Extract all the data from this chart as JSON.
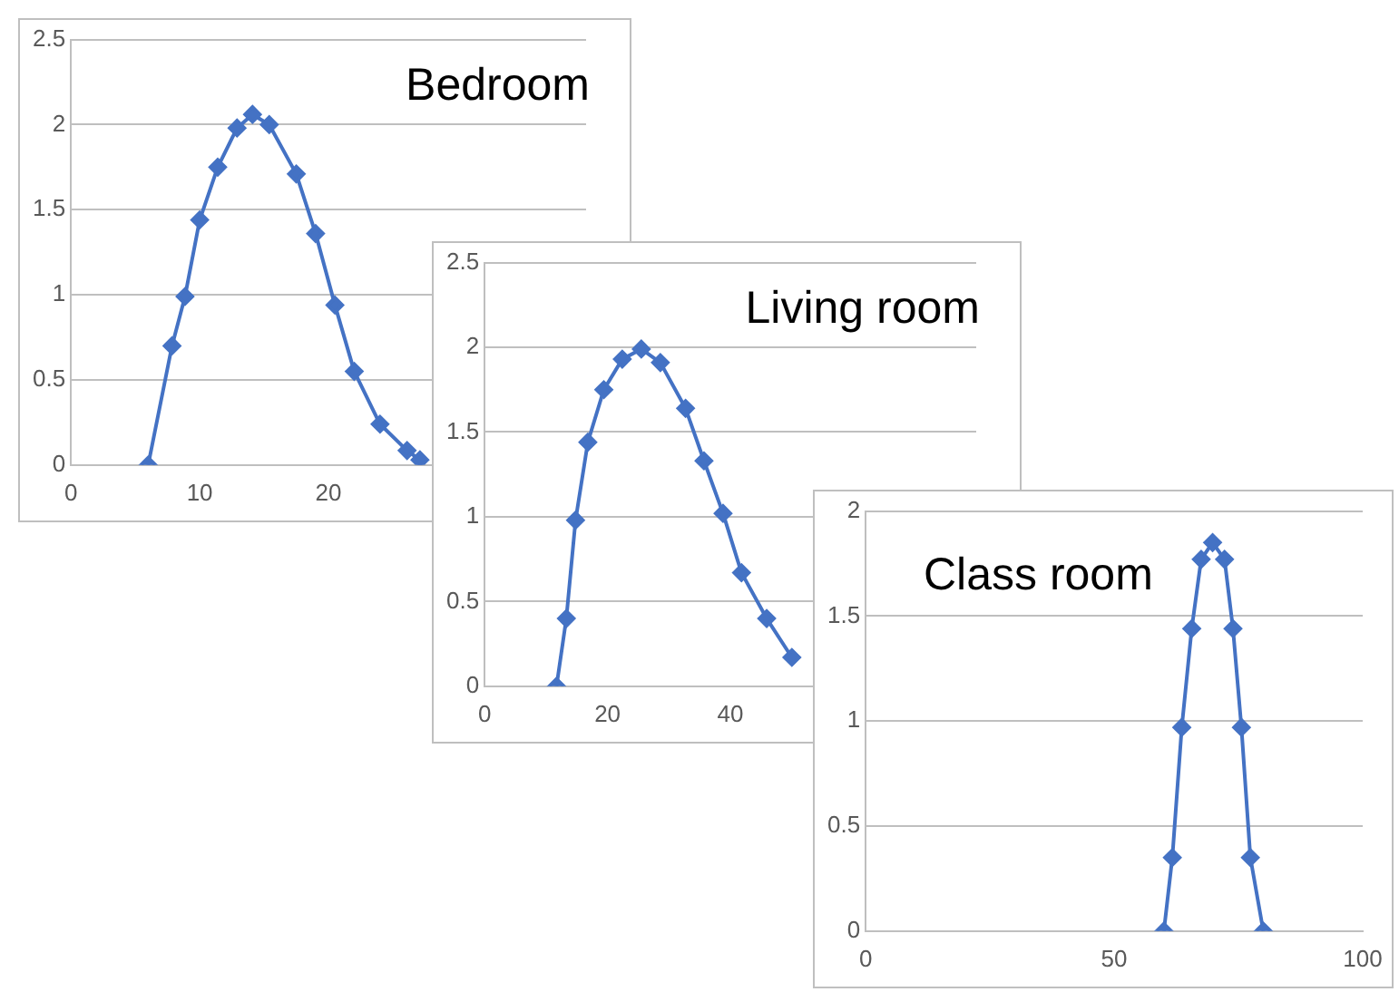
{
  "chart_data": [
    {
      "type": "line",
      "title": "Bedroom",
      "color": "#4472c4",
      "marker": "diamond",
      "grid": "y",
      "x": [
        6,
        7.85,
        8.86,
        10,
        11.4,
        12.9,
        14.1,
        15.4,
        17.5,
        19,
        20.5,
        22,
        24,
        26.1,
        27.1
      ],
      "values": [
        0,
        0.7,
        0.99,
        1.44,
        1.75,
        1.98,
        2.06,
        2.0,
        1.71,
        1.36,
        0.94,
        0.55,
        0.24,
        0.085,
        0.03
      ],
      "xlim": [
        0,
        40
      ],
      "xticks": [
        0,
        10,
        20
      ],
      "ylim": [
        0,
        2.5
      ],
      "yticks": [
        0,
        0.5,
        1,
        1.5,
        2,
        2.5
      ]
    },
    {
      "type": "line",
      "title": "Living room",
      "color": "#4472c4",
      "marker": "diamond",
      "grid": "y",
      "x": [
        11.7,
        13.3,
        14.8,
        16.8,
        19.4,
        22.4,
        25.5,
        28.6,
        32.7,
        35.7,
        38.8,
        41.8,
        45.9,
        50
      ],
      "values": [
        0,
        0.4,
        0.98,
        1.44,
        1.75,
        1.93,
        1.99,
        1.91,
        1.64,
        1.33,
        1.02,
        0.67,
        0.4,
        0.17
      ],
      "xlim": [
        0,
        80
      ],
      "xticks": [
        0,
        20,
        40
      ],
      "ylim": [
        0,
        2.5
      ],
      "yticks": [
        0,
        0.5,
        1,
        1.5,
        2,
        2.5
      ]
    },
    {
      "type": "line",
      "title": "Class room",
      "color": "#4472c4",
      "marker": "diamond",
      "grid": "y",
      "x": [
        60,
        61.7,
        63.6,
        65.6,
        67.5,
        69.8,
        72.2,
        73.9,
        75.6,
        77.4,
        80
      ],
      "values": [
        0,
        0.35,
        0.97,
        1.44,
        1.77,
        1.85,
        1.77,
        1.44,
        0.97,
        0.35,
        0
      ],
      "xlim": [
        0,
        100
      ],
      "xticks": [
        0,
        50,
        100
      ],
      "ylim": [
        0,
        2
      ],
      "yticks": [
        0,
        0.5,
        1,
        1.5,
        2
      ]
    }
  ]
}
